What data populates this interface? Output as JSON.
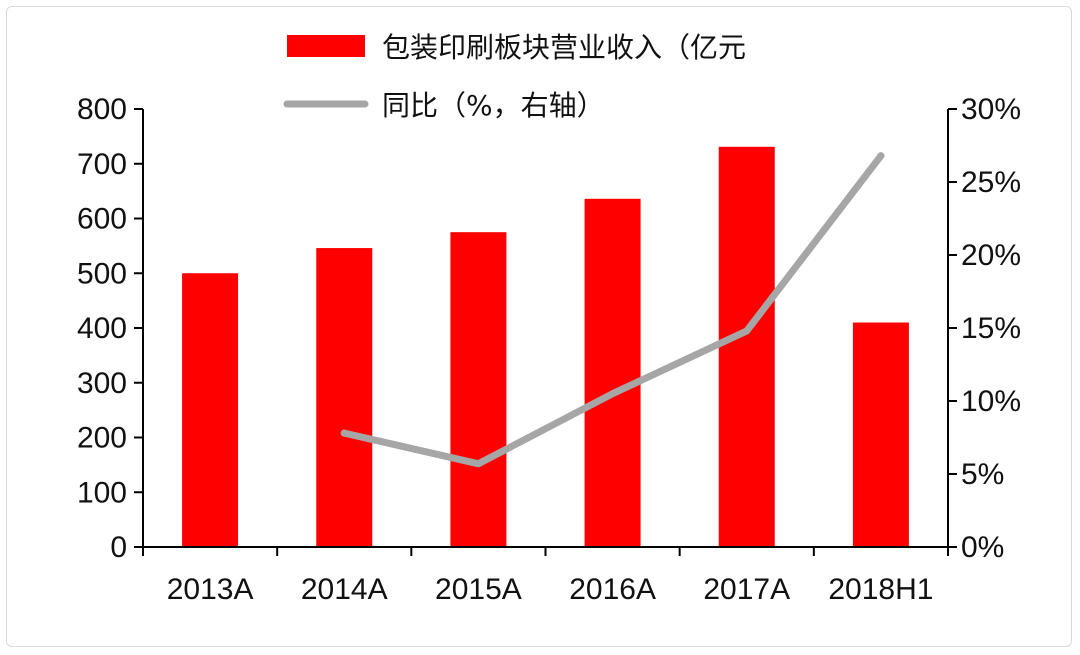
{
  "chart_data": {
    "type": "bar",
    "categories": [
      "2013A",
      "2014A",
      "2015A",
      "2016A",
      "2017A",
      "2018H1"
    ],
    "series": [
      {
        "name": "包装印刷板块营业收入（亿元",
        "type": "bar",
        "axis": "left",
        "values": [
          500,
          546,
          575,
          636,
          731,
          410
        ]
      },
      {
        "name": "同比（%，右轴）",
        "type": "line",
        "axis": "right",
        "values": [
          null,
          7.8,
          5.7,
          10.5,
          14.8,
          26.8
        ]
      }
    ],
    "y_left": {
      "min": 0,
      "max": 800,
      "step": 100,
      "ticks": [
        "0",
        "100",
        "200",
        "300",
        "400",
        "500",
        "600",
        "700",
        "800"
      ]
    },
    "y_right": {
      "min": 0,
      "max": 30,
      "step": 5,
      "ticks": [
        "0%",
        "5%",
        "10%",
        "15%",
        "20%",
        "25%",
        "30%"
      ]
    },
    "legend_position": "top-center",
    "grid": false,
    "colors": {
      "bar": "#ff0000",
      "line": "#a6a6a6",
      "axis": "#000000"
    }
  }
}
